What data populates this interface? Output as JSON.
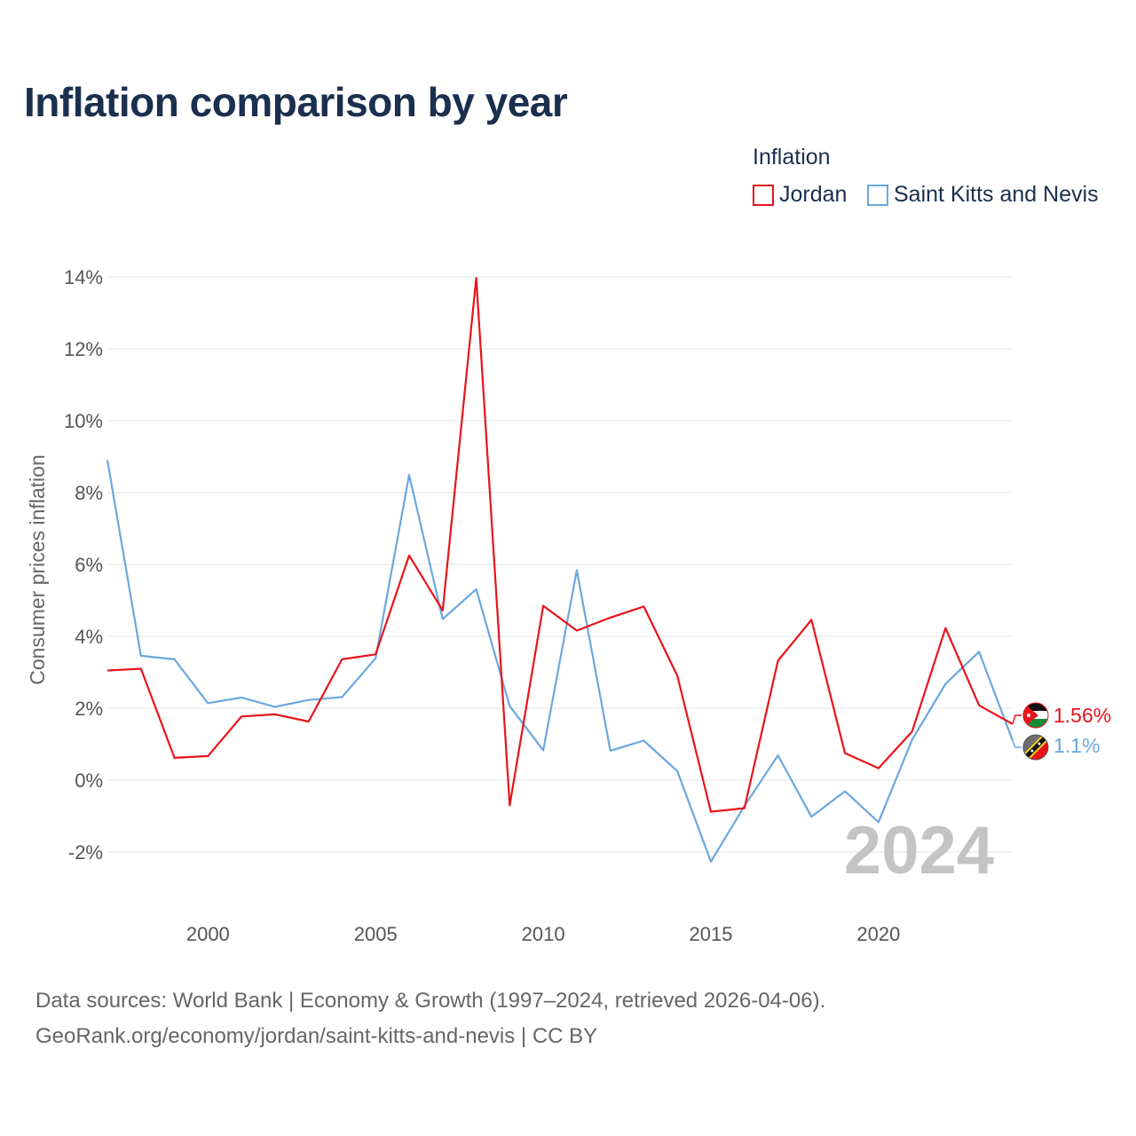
{
  "title": "Inflation comparison by year",
  "legend": {
    "title": "Inflation",
    "items": [
      {
        "label": "Jordan",
        "color": "#e8141a"
      },
      {
        "label": "Saint Kitts and Nevis",
        "color": "#6aa8e0"
      }
    ]
  },
  "source": {
    "line1": "Data sources: World Bank | Economy & Growth (1997–2024, retrieved 2026-04-06).",
    "line2": "GeoRank.org/economy/jordan/saint-kitts-and-nevis | CC BY"
  },
  "chart_data": {
    "type": "line",
    "title": "Inflation comparison by year",
    "xlabel": "",
    "ylabel": "Consumer prices inflation",
    "xlim": [
      1997,
      2024
    ],
    "ylim": [
      -3,
      14
    ],
    "yticks": [
      -2,
      0,
      2,
      4,
      6,
      8,
      10,
      12,
      14
    ],
    "ytick_labels": [
      "-2%",
      "0%",
      "2%",
      "4%",
      "6%",
      "8%",
      "10%",
      "12%",
      "14%"
    ],
    "xticks": [
      2000,
      2005,
      2010,
      2015,
      2020
    ],
    "xtick_labels": [
      "2000",
      "2005",
      "2010",
      "2015",
      "2020"
    ],
    "grid": true,
    "year_label": "2024",
    "x": [
      1997,
      1998,
      1999,
      2000,
      2001,
      2002,
      2003,
      2004,
      2005,
      2006,
      2007,
      2008,
      2009,
      2010,
      2011,
      2012,
      2013,
      2014,
      2015,
      2016,
      2017,
      2018,
      2019,
      2020,
      2021,
      2022,
      2023,
      2024
    ],
    "series": [
      {
        "name": "Jordan",
        "color": "#e8141a",
        "end_label": "1.56%",
        "values": [
          3.05,
          3.1,
          0.62,
          0.67,
          1.77,
          1.83,
          1.63,
          3.36,
          3.5,
          6.25,
          4.72,
          13.97,
          -0.7,
          4.85,
          4.16,
          4.52,
          4.83,
          2.9,
          -0.88,
          -0.78,
          3.32,
          4.46,
          0.75,
          0.33,
          1.35,
          4.23,
          2.08,
          1.56
        ]
      },
      {
        "name": "Saint Kitts and Nevis",
        "color": "#6aa8e0",
        "end_label": "1.1%",
        "values": [
          8.9,
          3.46,
          3.36,
          2.14,
          2.3,
          2.04,
          2.23,
          2.31,
          3.39,
          8.49,
          4.48,
          5.31,
          2.06,
          0.83,
          5.84,
          0.82,
          1.1,
          0.25,
          -2.27,
          -0.72,
          0.69,
          -1.02,
          -0.31,
          -1.17,
          1.12,
          2.68,
          3.57,
          1.1
        ]
      }
    ]
  }
}
